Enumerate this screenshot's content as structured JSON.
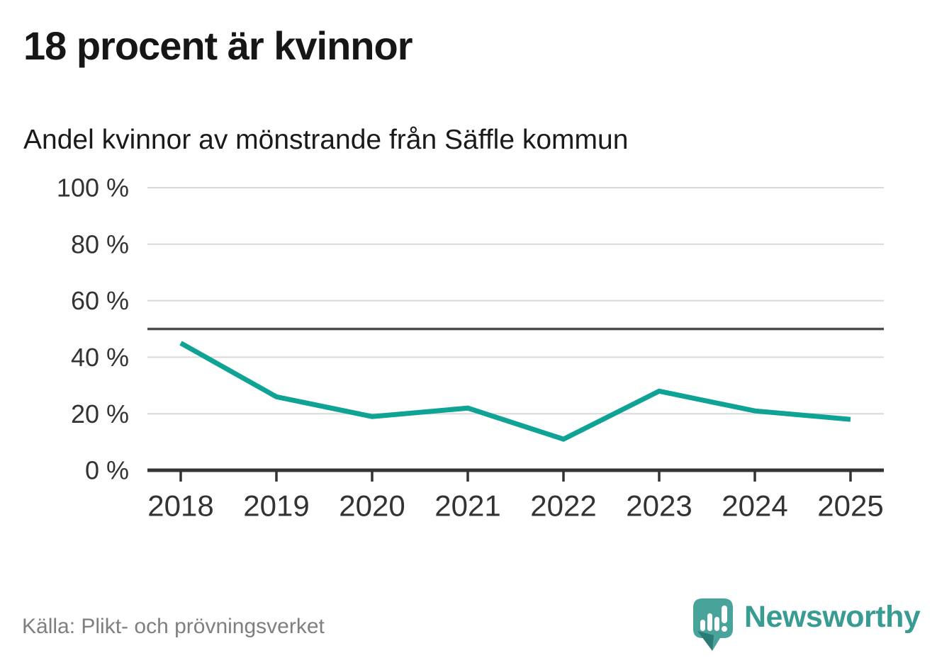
{
  "header": {
    "title": "18 procent är kvinnor",
    "subtitle": "Andel kvinnor av mönstrande från Säffle kommun"
  },
  "chart_data": {
    "type": "line",
    "title": "18 procent är kvinnor",
    "subtitle": "Andel kvinnor av mönstrande från Säffle kommun",
    "categories": [
      "2018",
      "2019",
      "2020",
      "2021",
      "2022",
      "2023",
      "2024",
      "2025"
    ],
    "series": [
      {
        "name": "Andel kvinnor av mönstrande",
        "values": [
          45,
          26,
          19,
          22,
          11,
          28,
          21,
          18
        ],
        "color": "#0fa396"
      }
    ],
    "unit": "%",
    "ylim": [
      0,
      100
    ],
    "yticks": [
      0,
      20,
      40,
      60,
      80,
      100
    ],
    "ytick_suffix": " %",
    "xlabel": "",
    "ylabel": "",
    "reference_line": {
      "value": 50,
      "color": "#4d4d4d"
    },
    "grid": "horizontal",
    "grid_color": "#d9d9d9",
    "axis_color": "#333333",
    "tick_label_color": "#333333",
    "legend": "none"
  },
  "footer": {
    "source": "Källa: Plikt- och prövningsverket",
    "brand": {
      "name": "Newsworthy",
      "text_color": "#389c93",
      "icon": "newsworthy-speech-bubble-chart-icon",
      "icon_color": "#48a49b",
      "icon_shadow_color": "#2a7b76",
      "icon_glyph_color": "#ffffff"
    }
  }
}
